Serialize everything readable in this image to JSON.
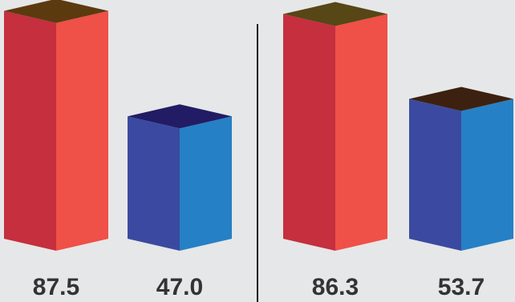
{
  "chart_data": {
    "type": "bar",
    "style": "3d-isometric",
    "groups": [
      {
        "bars": [
          {
            "value": 87.5,
            "label": "87.5",
            "colors": {
              "left": "#c52f3e",
              "right": "#ef5047",
              "top": "#5c3a10"
            }
          },
          {
            "value": 47.0,
            "label": "47.0",
            "colors": {
              "left": "#3b4aa0",
              "right": "#2680c5",
              "top": "#221c65"
            }
          }
        ]
      },
      {
        "bars": [
          {
            "value": 86.3,
            "label": "86.3",
            "colors": {
              "left": "#c52f3e",
              "right": "#ef5047",
              "top": "#574616"
            }
          },
          {
            "value": 53.7,
            "label": "53.7",
            "colors": {
              "left": "#3b4aa0",
              "right": "#2680c5",
              "top": "#3c2110"
            }
          }
        ]
      }
    ],
    "divider": true,
    "axes_visible": false,
    "gridlines": false,
    "legend": "none",
    "background": "#e6e7e8",
    "label_color": "#333333"
  }
}
